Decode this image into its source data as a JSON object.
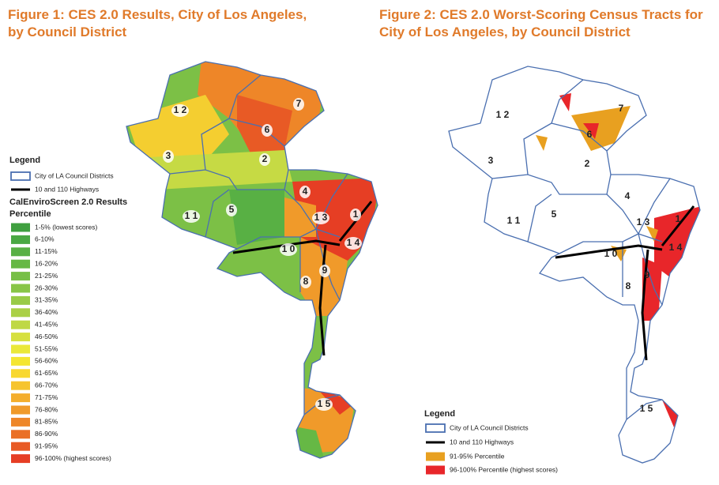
{
  "figures": [
    {
      "title_lines": [
        "Figure 1: CES 2.0 Results, City of Los Angeles,",
        "by Council District"
      ],
      "district_labels": [
        "1 2",
        "7",
        "6",
        "3",
        "2",
        "4",
        "1 1",
        "5",
        "1 3",
        "1",
        "1 0",
        "1 4",
        "9",
        "8",
        "1 5"
      ],
      "legend": {
        "title": "Legend",
        "items": [
          {
            "label": "City of LA Council Districts"
          },
          {
            "label": "10 and 110 Highways"
          }
        ],
        "section_title": "CalEnviroScreen 2.0 Results",
        "subsection": "Percentile",
        "scale": [
          {
            "label": "1-5% (lowest scores)",
            "color": "#3f9f3f"
          },
          {
            "label": "6-10%",
            "color": "#4aa843"
          },
          {
            "label": "11-15%",
            "color": "#58b044"
          },
          {
            "label": "16-20%",
            "color": "#66b845"
          },
          {
            "label": "21-25%",
            "color": "#77bf46"
          },
          {
            "label": "26-30%",
            "color": "#88c547"
          },
          {
            "label": "31-35%",
            "color": "#99cb47"
          },
          {
            "label": "36-40%",
            "color": "#aad046"
          },
          {
            "label": "41-45%",
            "color": "#bfd845"
          },
          {
            "label": "46-50%",
            "color": "#d6e040"
          },
          {
            "label": "51-55%",
            "color": "#eae83a"
          },
          {
            "label": "56-60%",
            "color": "#f4e632"
          },
          {
            "label": "61-65%",
            "color": "#f8d830"
          },
          {
            "label": "66-70%",
            "color": "#f6c42e"
          },
          {
            "label": "71-75%",
            "color": "#f4ae2c"
          },
          {
            "label": "76-80%",
            "color": "#f09a2a"
          },
          {
            "label": "81-85%",
            "color": "#ee8628"
          },
          {
            "label": "86-90%",
            "color": "#ea7026"
          },
          {
            "label": "91-95%",
            "color": "#e85a25"
          },
          {
            "label": "96-100% (highest scores)",
            "color": "#e63e24"
          }
        ]
      }
    },
    {
      "title_lines": [
        "Figure 2: CES 2.0 Worst-Scoring Census Tracts for",
        "City of Los Angeles, by Council District"
      ],
      "district_labels": [
        "1 2",
        "7",
        "6",
        "3",
        "2",
        "4",
        "1 1",
        "5",
        "1 3",
        "1",
        "1 0",
        "1 4",
        "9",
        "8",
        "1 5"
      ],
      "legend": {
        "title": "Legend",
        "items": [
          {
            "label": "City of LA Council Districts"
          },
          {
            "label": "10 and 110 Highways"
          }
        ],
        "scale": [
          {
            "label": "91-95% Percentile",
            "color": "#e8a020"
          },
          {
            "label": "96-100% Percentile (highest scores)",
            "color": "#e8262a"
          }
        ]
      }
    }
  ]
}
